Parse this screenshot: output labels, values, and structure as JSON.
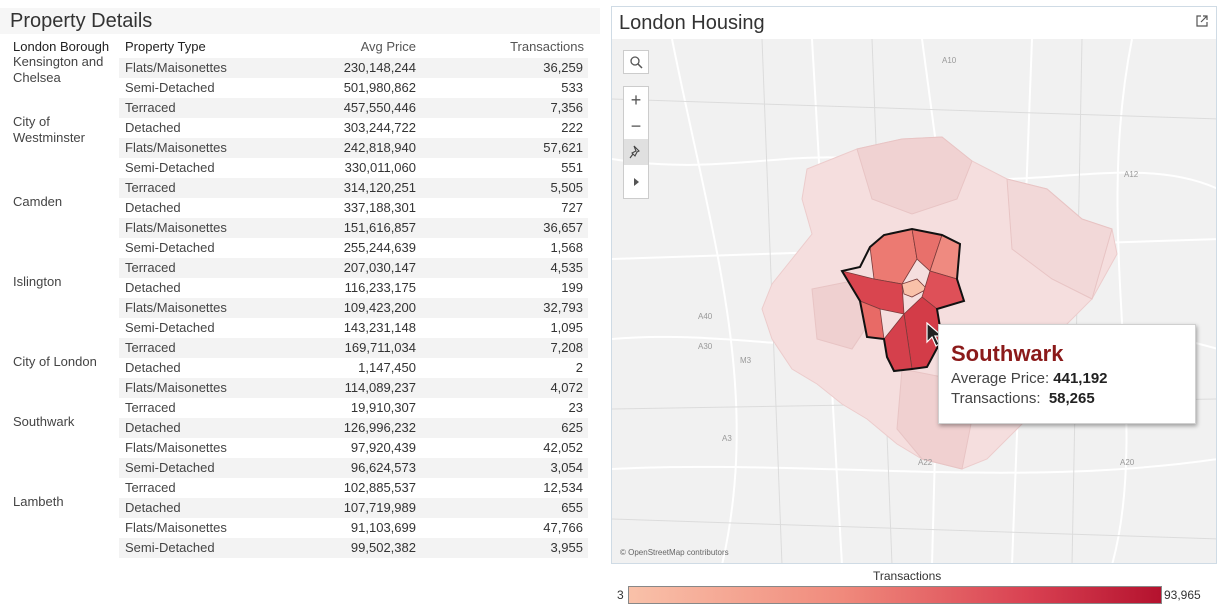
{
  "left": {
    "title": "Property Details",
    "headers": {
      "borough": "London Borough",
      "type": "Property Type",
      "price": "Avg Price",
      "trans": "Transactions"
    },
    "boroughs": [
      {
        "name": "Kensington and Chelsea",
        "rows": [
          {
            "type": "Flats/Maisonettes",
            "price": "230,148,244",
            "trans": "36,259"
          },
          {
            "type": "Semi-Detached",
            "price": "501,980,862",
            "trans": "533"
          },
          {
            "type": "Terraced",
            "price": "457,550,446",
            "trans": "7,356"
          }
        ]
      },
      {
        "name": "City of Westminster",
        "rows": [
          {
            "type": "Detached",
            "price": "303,244,722",
            "trans": "222"
          },
          {
            "type": "Flats/Maisonettes",
            "price": "242,818,940",
            "trans": "57,621"
          },
          {
            "type": "Semi-Detached",
            "price": "330,011,060",
            "trans": "551"
          },
          {
            "type": "Terraced",
            "price": "314,120,251",
            "trans": "5,505"
          }
        ]
      },
      {
        "name": "Camden",
        "rows": [
          {
            "type": "Detached",
            "price": "337,188,301",
            "trans": "727"
          },
          {
            "type": "Flats/Maisonettes",
            "price": "151,616,857",
            "trans": "36,657"
          },
          {
            "type": "Semi-Detached",
            "price": "255,244,639",
            "trans": "1,568"
          },
          {
            "type": "Terraced",
            "price": "207,030,147",
            "trans": "4,535"
          }
        ]
      },
      {
        "name": "Islington",
        "rows": [
          {
            "type": "Detached",
            "price": "116,233,175",
            "trans": "199"
          },
          {
            "type": "Flats/Maisonettes",
            "price": "109,423,200",
            "trans": "32,793"
          },
          {
            "type": "Semi-Detached",
            "price": "143,231,148",
            "trans": "1,095"
          },
          {
            "type": "Terraced",
            "price": "169,711,034",
            "trans": "7,208"
          }
        ]
      },
      {
        "name": "City of London",
        "rows": [
          {
            "type": "Detached",
            "price": "1,147,450",
            "trans": "2"
          },
          {
            "type": "Flats/Maisonettes",
            "price": "114,089,237",
            "trans": "4,072"
          },
          {
            "type": "Terraced",
            "price": "19,910,307",
            "trans": "23"
          }
        ]
      },
      {
        "name": "Southwark",
        "rows": [
          {
            "type": "Detached",
            "price": "126,996,232",
            "trans": "625"
          },
          {
            "type": "Flats/Maisonettes",
            "price": "97,920,439",
            "trans": "42,052"
          },
          {
            "type": "Semi-Detached",
            "price": "96,624,573",
            "trans": "3,054"
          },
          {
            "type": "Terraced",
            "price": "102,885,537",
            "trans": "12,534"
          }
        ]
      },
      {
        "name": "Lambeth",
        "rows": [
          {
            "type": "Detached",
            "price": "107,719,989",
            "trans": "655"
          },
          {
            "type": "Flats/Maisonettes",
            "price": "91,103,699",
            "trans": "47,766"
          },
          {
            "type": "Semi-Detached",
            "price": "99,502,382",
            "trans": "3,955"
          }
        ]
      }
    ]
  },
  "map": {
    "title": "London Housing",
    "road_labels": [
      "A10",
      "A12",
      "A40",
      "A30",
      "M3",
      "A3",
      "A22",
      "A20"
    ],
    "attribution": "© OpenStreetMap contributors",
    "tooltip": {
      "name": "Southwark",
      "avg_label": "Average Price:",
      "avg_value": "441,192",
      "trans_label": "Transactions:",
      "trans_value": "58,265"
    },
    "colors": {
      "highlight": "#d9454f",
      "tooltip_name": "#8b1a1a"
    }
  },
  "legend": {
    "title": "Transactions",
    "min": "3",
    "max": "93,965",
    "color_low": "#f9c1a9",
    "color_high": "#b4122e"
  }
}
